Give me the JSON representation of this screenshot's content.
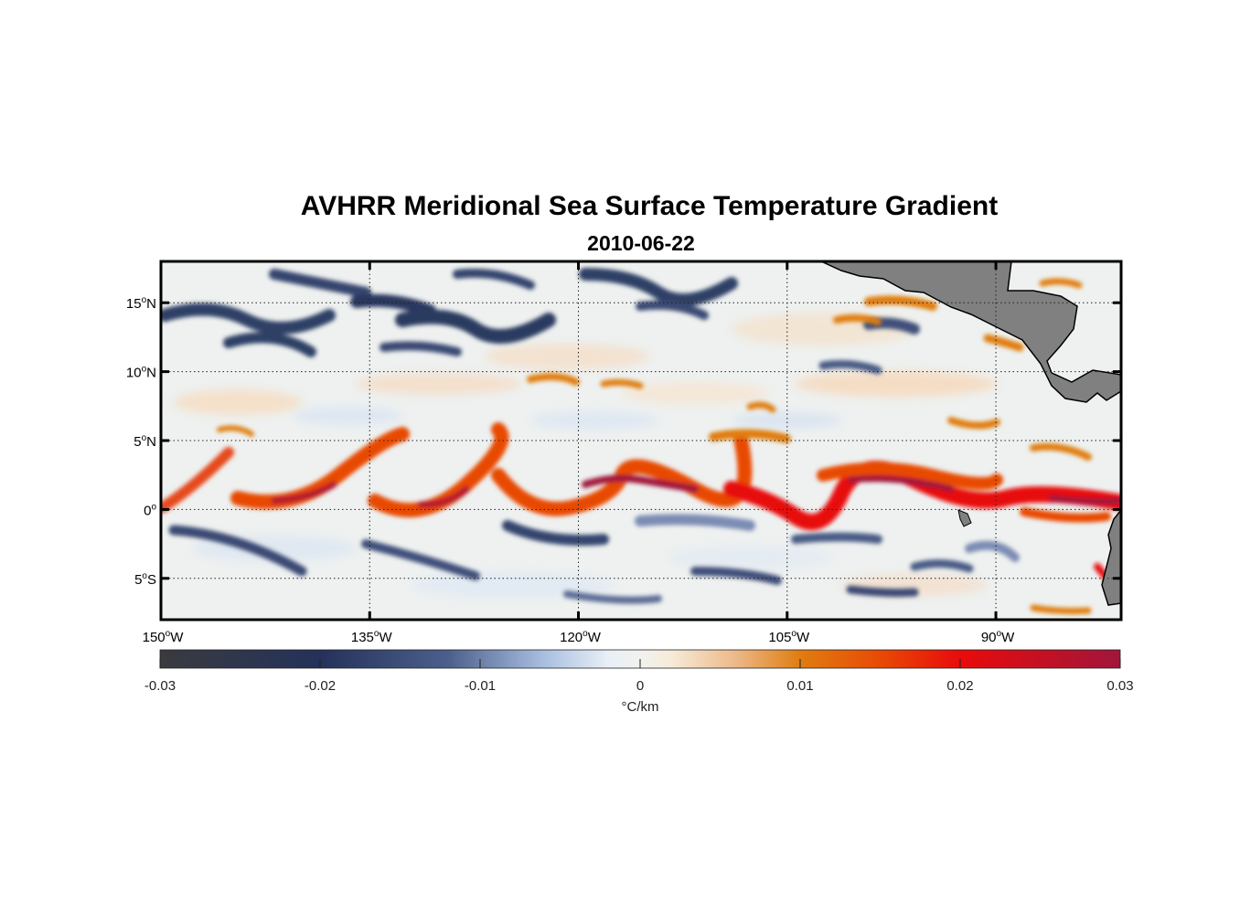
{
  "title": "AVHRR Meridional Sea Surface Temperature Gradient",
  "subtitle": "2010-06-22",
  "map": {
    "lon_range": [
      -150,
      -81
    ],
    "lat_range": [
      -8,
      18
    ],
    "lat_ticks": [
      {
        "value": 15,
        "num": "15",
        "deg": "o",
        "hemi": "N"
      },
      {
        "value": 10,
        "num": "10",
        "deg": "o",
        "hemi": "N"
      },
      {
        "value": 5,
        "num": "5",
        "deg": "o",
        "hemi": "N"
      },
      {
        "value": 0,
        "num": "0",
        "deg": "o",
        "hemi": ""
      },
      {
        "value": -5,
        "num": "5",
        "deg": "o",
        "hemi": "S"
      }
    ],
    "lon_ticks": [
      {
        "value": -150,
        "num": "150",
        "deg": "o",
        "hemi": "W"
      },
      {
        "value": -135,
        "num": "135",
        "deg": "o",
        "hemi": "W"
      },
      {
        "value": -120,
        "num": "120",
        "deg": "o",
        "hemi": "W"
      },
      {
        "value": -105,
        "num": "105",
        "deg": "o",
        "hemi": "W"
      },
      {
        "value": -90,
        "num": "90",
        "deg": "o",
        "hemi": "W"
      }
    ],
    "land_color": "#808080",
    "grid_style": "dotted"
  },
  "colorbar": {
    "range": [
      -0.03,
      0.03
    ],
    "ticks": [
      "-0.03",
      "-0.02",
      "-0.01",
      "0",
      "0.01",
      "0.02",
      "0.03"
    ],
    "tick_values": [
      -0.03,
      -0.02,
      -0.01,
      0,
      0.01,
      0.02,
      0.03
    ],
    "label": "°C/km",
    "colormap": [
      {
        "v": -0.03,
        "c": "#3a3b3f"
      },
      {
        "v": -0.02,
        "c": "#24325a"
      },
      {
        "v": -0.012,
        "c": "#4c5f8c"
      },
      {
        "v": -0.006,
        "c": "#a9bfe0"
      },
      {
        "v": -0.002,
        "c": "#e8eff6"
      },
      {
        "v": 0.0,
        "c": "#f1f2ef"
      },
      {
        "v": 0.002,
        "c": "#f7ead8"
      },
      {
        "v": 0.006,
        "c": "#ecb888"
      },
      {
        "v": 0.01,
        "c": "#e07d10"
      },
      {
        "v": 0.015,
        "c": "#e84a06"
      },
      {
        "v": 0.02,
        "c": "#e80b0b"
      },
      {
        "v": 0.03,
        "c": "#a1163b"
      }
    ]
  }
}
